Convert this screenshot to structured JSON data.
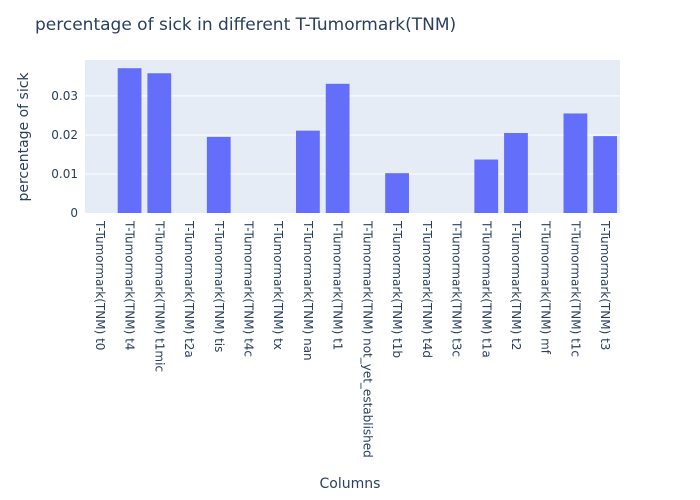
{
  "chart_data": {
    "type": "bar",
    "title": "percentage of sick in different T-Tumormark(TNM)",
    "xlabel": "Columns",
    "ylabel": "percentage of sick",
    "categories": [
      "T-Tumormark(TNM) t0",
      "T-Tumormark(TNM) t4",
      "T-Tumormark(TNM) t1mic",
      "T-Tumormark(TNM) t2a",
      "T-Tumormark(TNM) tis",
      "T-Tumormark(TNM) t4c",
      "T-Tumormark(TNM) tx",
      "T-Tumormark(TNM) nan",
      "T-Tumormark(TNM) t1",
      "T-Tumormark(TNM) not_yet_established",
      "T-Tumormark(TNM) t1b",
      "T-Tumormark(TNM) t4d",
      "T-Tumormark(TNM) t3c",
      "T-Tumormark(TNM) t1a",
      "T-Tumormark(TNM) t2",
      "T-Tumormark(TNM) mf",
      "T-Tumormark(TNM) t1c",
      "T-Tumormark(TNM) t3"
    ],
    "values": [
      0,
      0.0371,
      0.0358,
      0,
      0.0195,
      0,
      0,
      0.0211,
      0.0331,
      0,
      0.0102,
      0,
      0,
      0.0137,
      0.0205,
      0,
      0.0255,
      0.0197
    ],
    "ylim": [
      0,
      0.0392
    ],
    "yticks": [
      0,
      0.01,
      0.02,
      0.03
    ],
    "ytick_labels": [
      "0",
      "0.01",
      "0.02",
      "0.03"
    ],
    "grid": true,
    "colors": {
      "bar": "#636efa",
      "plot_bg": "#e5ecf6",
      "grid": "#ffffff",
      "text": "#2a3f5f"
    }
  }
}
